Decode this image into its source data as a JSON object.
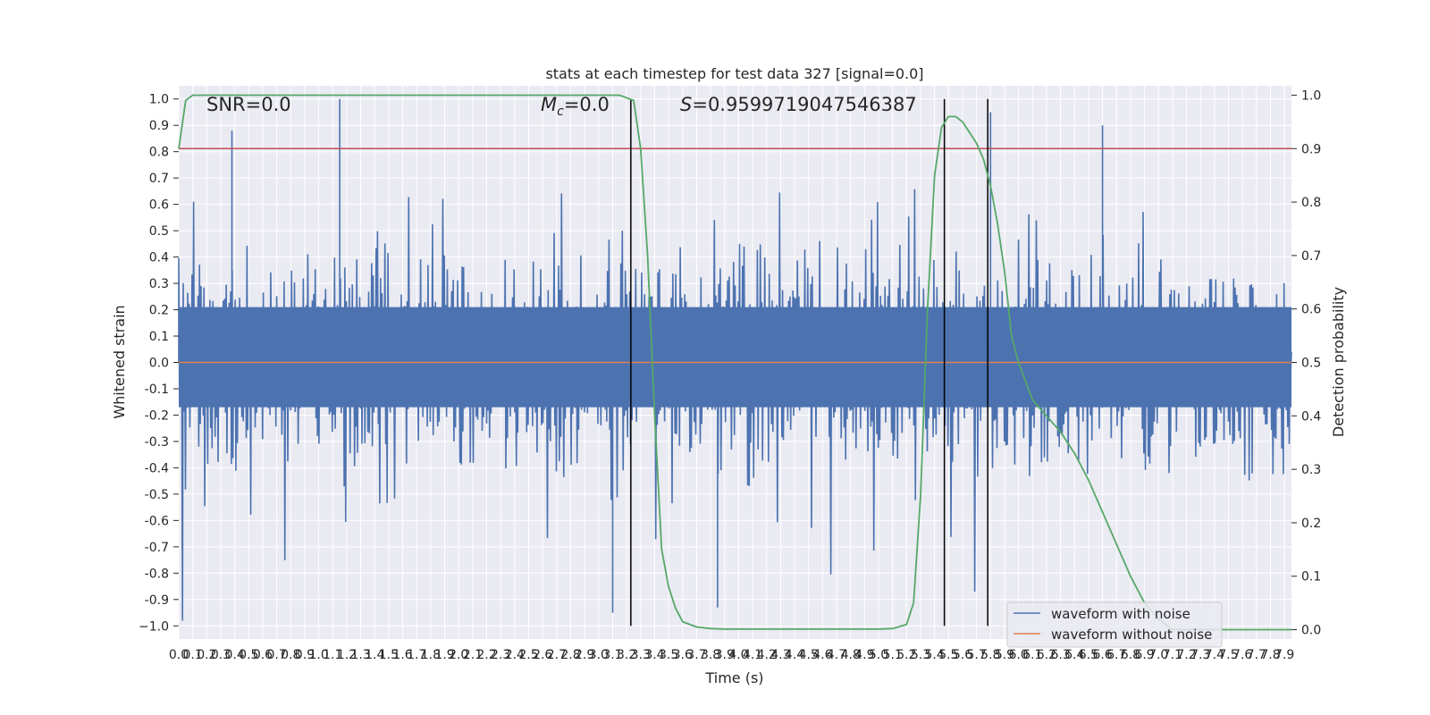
{
  "chart_data": {
    "type": "line",
    "title": "stats at each timestep for test data 327 [signal=0.0]",
    "annotations": {
      "snr": "SNR=0.0",
      "mc_symbol": "M",
      "mc_sub": "c",
      "mc_value": "=0.0",
      "s_symbol": "S",
      "s_value": "=0.9599719047546387"
    },
    "xlabel": "Time (s)",
    "ylabel": "Whitened strain",
    "y2label": "Detection probability",
    "xlim": [
      0.0,
      7.95
    ],
    "ylim": [
      -1.05,
      1.05
    ],
    "y2lim": [
      -0.0175,
      1.0175
    ],
    "xticks": [
      "0.0",
      "0.1",
      "0.2",
      "0.3",
      "0.4",
      "0.5",
      "0.6",
      "0.7",
      "0.8",
      "0.9",
      "1.0",
      "1.1",
      "1.2",
      "1.3",
      "1.4",
      "1.5",
      "1.6",
      "1.7",
      "1.8",
      "1.9",
      "2.0",
      "2.1",
      "2.2",
      "2.3",
      "2.4",
      "2.5",
      "2.6",
      "2.7",
      "2.8",
      "2.9",
      "3.0",
      "3.1",
      "3.2",
      "3.3",
      "3.4",
      "3.5",
      "3.6",
      "3.7",
      "3.8",
      "3.9",
      "4.0",
      "4.1",
      "4.2",
      "4.3",
      "4.4",
      "4.5",
      "4.6",
      "4.7",
      "4.8",
      "4.9",
      "5.0",
      "5.1",
      "5.2",
      "5.3",
      "5.4",
      "5.5",
      "5.6",
      "5.7",
      "5.8",
      "5.9",
      "6.0",
      "6.1",
      "6.2",
      "6.3",
      "6.4",
      "6.5",
      "6.6",
      "6.7",
      "6.8",
      "6.9",
      "7.0",
      "7.1",
      "7.2",
      "7.3",
      "7.4",
      "7.5",
      "7.6",
      "7.7",
      "7.8",
      "7.9"
    ],
    "yticks": [
      "1.0",
      "0.9",
      "0.8",
      "0.7",
      "0.6",
      "0.5",
      "0.4",
      "0.3",
      "0.2",
      "0.1",
      "0.0",
      "-0.1",
      "-0.2",
      "-0.3",
      "-0.4",
      "-0.5",
      "-0.6",
      "-0.7",
      "-0.8",
      "-0.9",
      "−1.0"
    ],
    "y2ticks": [
      "1.0",
      "0.9",
      "0.8",
      "0.7",
      "0.6",
      "0.5",
      "0.4",
      "0.3",
      "0.2",
      "0.1",
      "0.0"
    ],
    "threshold": 0.9,
    "vlines": [
      3.23,
      5.47,
      5.78
    ],
    "series": [
      {
        "name": "waveform with noise",
        "color": "#4c72b0",
        "note": "dense noise, amplitude ~0.25-0.5 typical, peaks up to 1.0 at ~1.15s, min ~-0.95 at ~3.1s"
      },
      {
        "name": "waveform without noise",
        "color": "#dd8452",
        "values_constant": 0.0
      },
      {
        "name": "detection probability",
        "color": "#55a868",
        "x": [
          0.0,
          0.05,
          0.1,
          0.2,
          3.0,
          3.15,
          3.25,
          3.3,
          3.35,
          3.4,
          3.45,
          3.5,
          3.55,
          3.6,
          3.7,
          3.8,
          3.9,
          4.0,
          4.2,
          5.0,
          5.1,
          5.2,
          5.25,
          5.3,
          5.35,
          5.4,
          5.45,
          5.5,
          5.55,
          5.6,
          5.65,
          5.7,
          5.75,
          5.8,
          5.85,
          5.9,
          5.95,
          6.0,
          6.1,
          6.2,
          6.3,
          6.4,
          6.5,
          6.6,
          6.7,
          6.8,
          6.9,
          7.0,
          7.1,
          7.2,
          7.3,
          7.5,
          7.95
        ],
        "y": [
          0.9,
          0.99,
          1.0,
          1.0,
          1.0,
          1.0,
          0.99,
          0.9,
          0.7,
          0.4,
          0.15,
          0.08,
          0.04,
          0.015,
          0.005,
          0.002,
          0.001,
          0.001,
          0.001,
          0.001,
          0.002,
          0.01,
          0.05,
          0.25,
          0.6,
          0.85,
          0.94,
          0.96,
          0.96,
          0.95,
          0.93,
          0.91,
          0.88,
          0.83,
          0.76,
          0.67,
          0.55,
          0.5,
          0.43,
          0.4,
          0.37,
          0.33,
          0.28,
          0.22,
          0.16,
          0.1,
          0.05,
          0.02,
          0.0,
          0.0,
          0.0,
          0.0,
          0.0
        ]
      }
    ]
  },
  "legend": {
    "items": [
      {
        "label": "waveform with noise",
        "color": "#4c72b0"
      },
      {
        "label": "waveform without noise",
        "color": "#dd8452"
      }
    ]
  },
  "colors": {
    "plot_bg": "#eaeaf2",
    "grid": "#ffffff",
    "threshold": "#c44e52",
    "vline": "#000000"
  }
}
